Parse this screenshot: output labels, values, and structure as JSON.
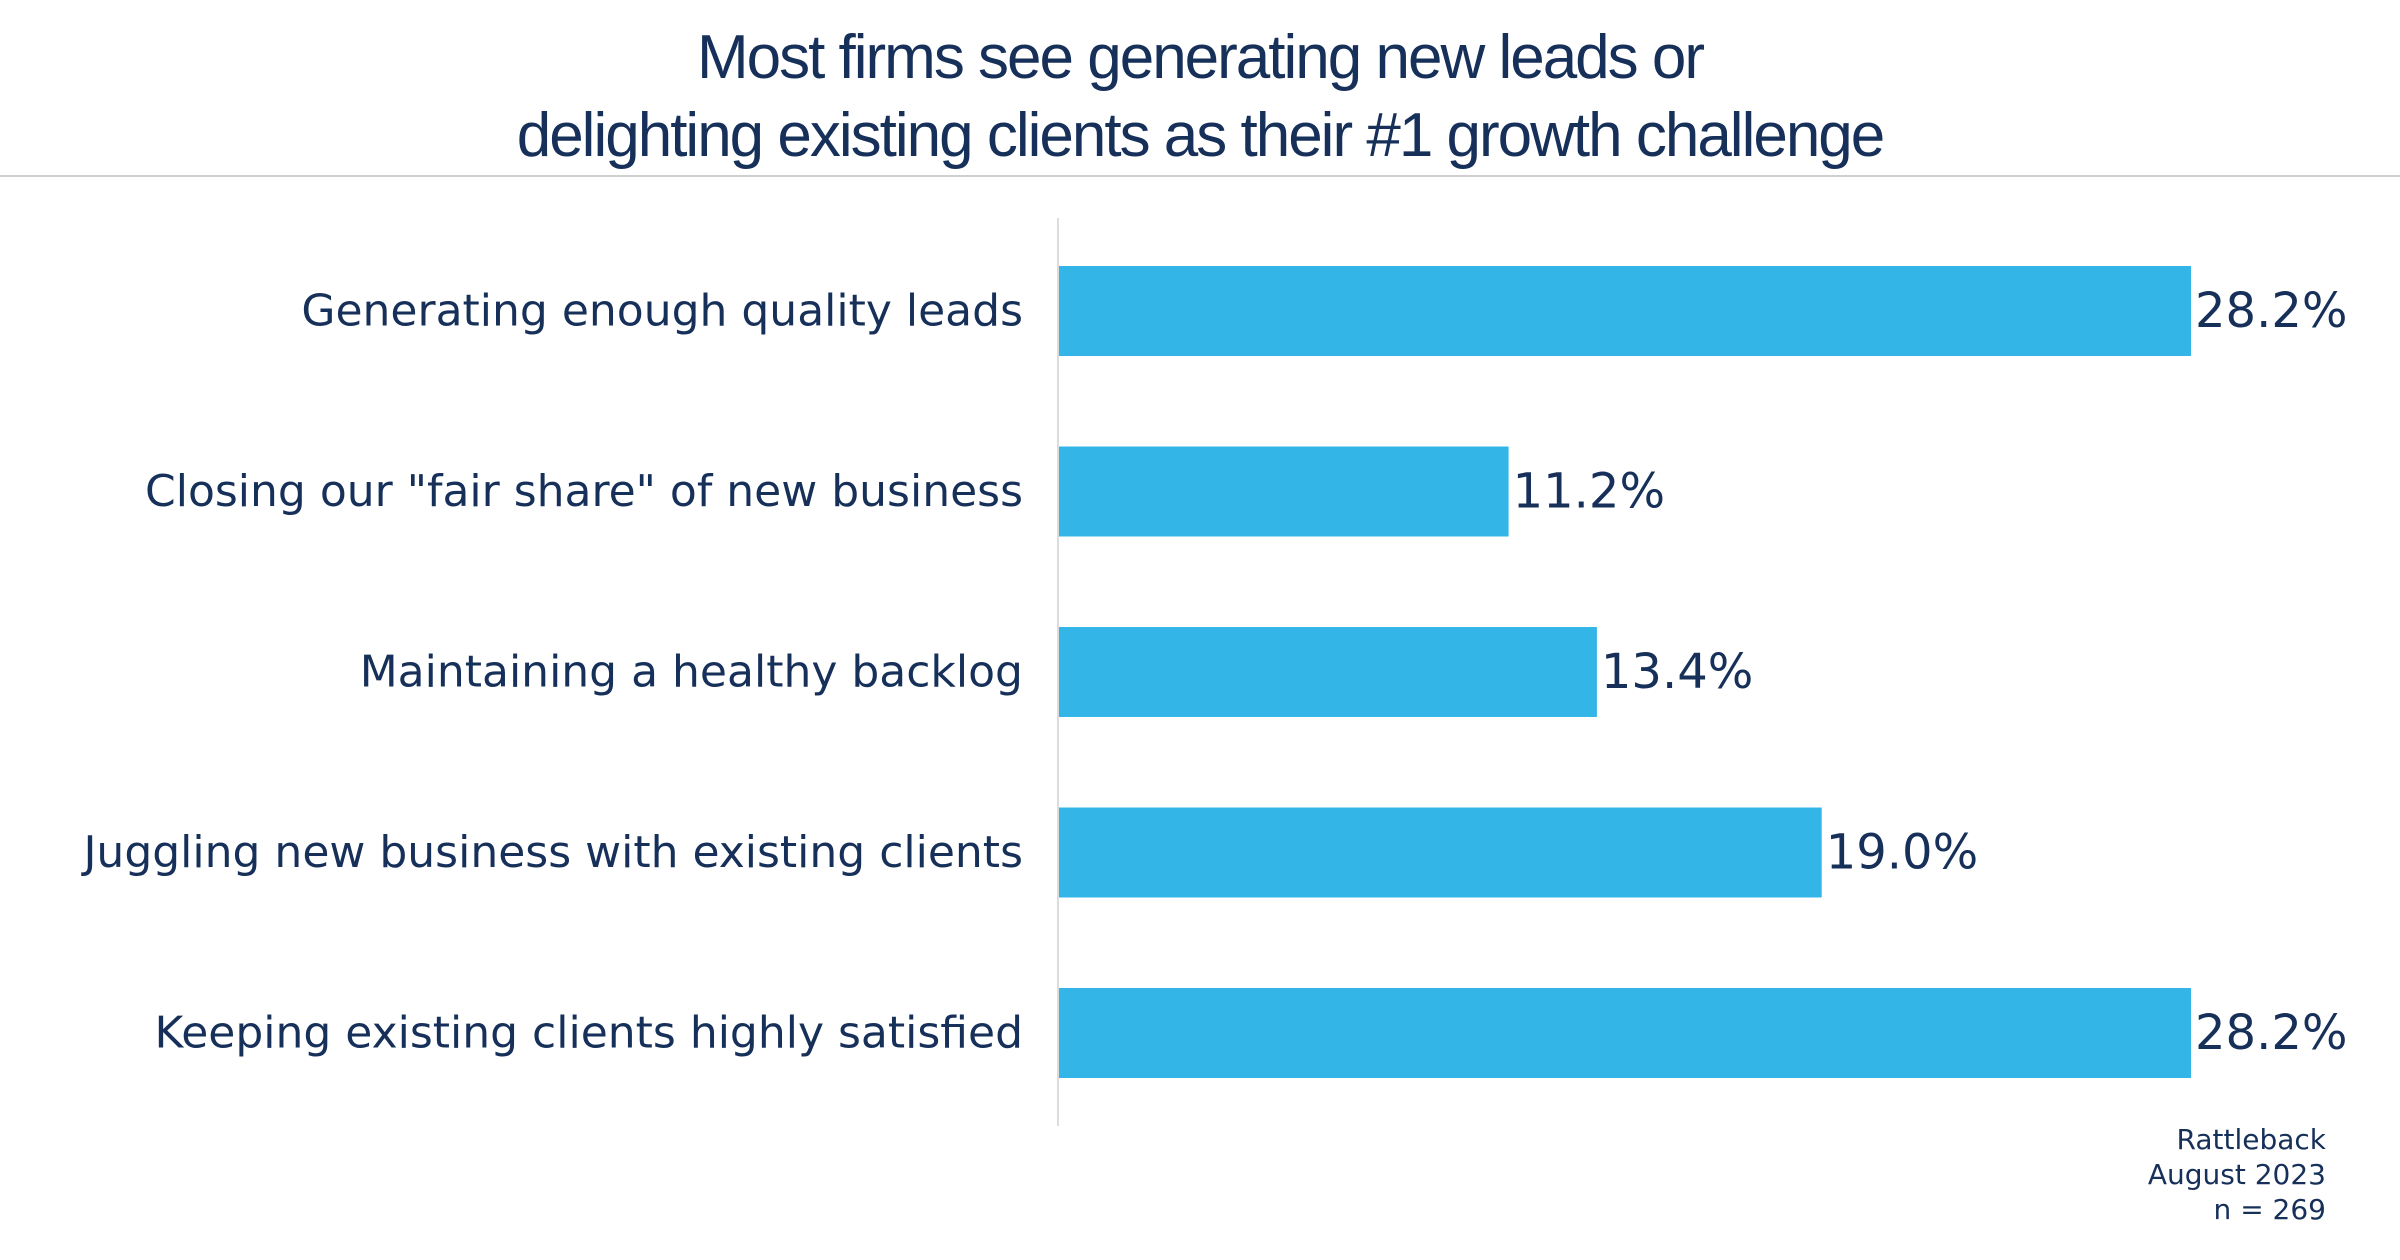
{
  "chart_data": {
    "type": "bar",
    "orientation": "horizontal",
    "title": "Most firms see generating new leads or delighting existing clients as their #1 growth challenge",
    "title_lines": [
      "Most firms see generating new leads or",
      "delighting existing clients as their #1 growth challenge"
    ],
    "categories": [
      "Generating enough quality leads",
      "Closing our \"fair share\" of new business",
      "Maintaining a healthy backlog",
      "Juggling new business with existing clients",
      "Keeping existing clients highly satisfied"
    ],
    "values": [
      28.2,
      11.2,
      13.4,
      19.0,
      28.2
    ],
    "value_labels": [
      "28.2%",
      "11.2%",
      "13.4%",
      "19.0%",
      "28.2%"
    ],
    "unit": "%",
    "xlim": [
      0,
      28.2
    ],
    "grid": false,
    "legend": "none",
    "bar_color": "#33b5e8",
    "text_color": "#16305a"
  },
  "footer": {
    "source": "Rattleback",
    "date": "August 2023",
    "sample": "n = 269"
  }
}
